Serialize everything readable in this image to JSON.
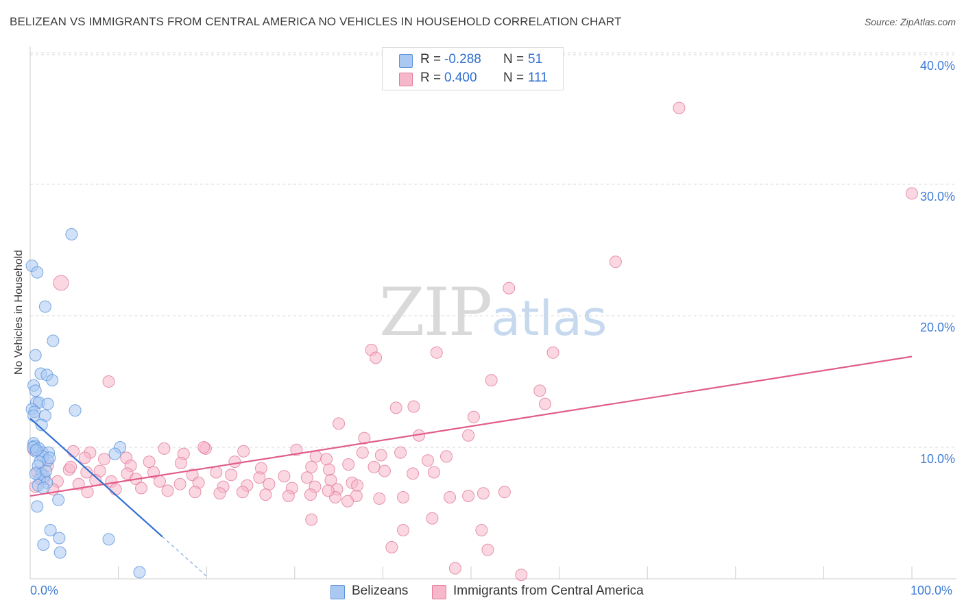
{
  "title": "BELIZEAN VS IMMIGRANTS FROM CENTRAL AMERICA NO VEHICLES IN HOUSEHOLD CORRELATION CHART",
  "source": "Source: ZipAtlas.com",
  "watermark": {
    "zip": "ZIP",
    "atlas": "atlas"
  },
  "legend": {
    "rows": [
      {
        "r_label": "R =",
        "r_value": "-0.288",
        "n_label": "N =",
        "n_value": "51",
        "color": "#a9c8f2"
      },
      {
        "r_label": "R =",
        "r_value": "0.400",
        "n_label": "N =",
        "n_value": "111",
        "color": "#f7b7ca"
      }
    ]
  },
  "bottom_legend": [
    {
      "label": "Belizeans",
      "color": "#a9c8f2"
    },
    {
      "label": "Immigrants from Central America",
      "color": "#f7b7ca"
    }
  ],
  "colors": {
    "blue_fill": "#a9c8f2",
    "blue_stroke": "#5b93dc",
    "blue_line": "#2f6fd0",
    "pink_fill": "#f7b7ca",
    "pink_stroke": "#e07a9a",
    "pink_line": "#e05c8a",
    "grid": "#d9d9d9",
    "tick_text": "#3f7dd6"
  },
  "chart_data": {
    "type": "scatter",
    "title": "BELIZEAN VS IMMIGRANTS FROM CENTRAL AMERICA NO VEHICLES IN HOUSEHOLD CORRELATION CHART",
    "xlabel": "",
    "ylabel": "No Vehicles in Household",
    "xlim": [
      0,
      100
    ],
    "ylim": [
      0,
      40
    ],
    "x_tick_labels": [
      "0.0%",
      "100.0%"
    ],
    "y_ticks": [
      10,
      20,
      30,
      40
    ],
    "y_tick_labels": [
      "10.0%",
      "20.0%",
      "30.0%",
      "40.0%"
    ],
    "grid": true,
    "legend_position": "top-center",
    "series": [
      {
        "name": "Belizeans",
        "r": -0.288,
        "n": 51,
        "trend": {
          "x0": 0.0,
          "y0": 12.2,
          "x1": 15.0,
          "y1": 3.2,
          "dashed_to_x": 20.0,
          "dashed_to_y": 0.2
        },
        "points": [
          [
            0.2,
            23.8
          ],
          [
            0.8,
            23.3
          ],
          [
            4.7,
            26.2
          ],
          [
            1.7,
            20.7
          ],
          [
            2.6,
            18.1
          ],
          [
            0.6,
            17.0
          ],
          [
            1.2,
            15.6
          ],
          [
            1.9,
            15.5
          ],
          [
            2.5,
            15.1
          ],
          [
            0.4,
            14.7
          ],
          [
            0.6,
            14.3
          ],
          [
            0.7,
            13.4
          ],
          [
            1.0,
            13.4
          ],
          [
            2.0,
            13.3
          ],
          [
            0.2,
            12.9
          ],
          [
            0.5,
            12.7
          ],
          [
            0.4,
            12.4
          ],
          [
            1.7,
            12.4
          ],
          [
            5.1,
            12.8
          ],
          [
            1.3,
            11.7
          ],
          [
            0.4,
            10.3
          ],
          [
            0.5,
            10.1
          ],
          [
            1.0,
            9.9
          ],
          [
            1.4,
            9.6
          ],
          [
            2.1,
            9.6
          ],
          [
            0.6,
            9.7
          ],
          [
            1.4,
            9.3
          ],
          [
            2.0,
            9.0
          ],
          [
            1.1,
            8.9
          ],
          [
            0.9,
            8.6
          ],
          [
            1.3,
            8.0
          ],
          [
            1.6,
            7.8
          ],
          [
            1.1,
            7.6
          ],
          [
            1.9,
            7.3
          ],
          [
            0.9,
            7.1
          ],
          [
            1.5,
            6.9
          ],
          [
            3.2,
            6.0
          ],
          [
            0.8,
            5.5
          ],
          [
            10.2,
            10.0
          ],
          [
            9.6,
            9.5
          ],
          [
            2.3,
            3.7
          ],
          [
            3.3,
            3.1
          ],
          [
            8.9,
            3.0
          ],
          [
            1.5,
            2.6
          ],
          [
            3.4,
            2.0
          ],
          [
            12.4,
            0.5
          ],
          [
            0.3,
            10.0
          ],
          [
            0.7,
            9.8
          ],
          [
            1.8,
            8.2
          ],
          [
            0.6,
            8.0
          ],
          [
            2.2,
            9.2
          ]
        ]
      },
      {
        "name": "Immigrants from Central America",
        "r": 0.4,
        "n": 111,
        "trend": {
          "x0": 0.0,
          "y0": 6.3,
          "x1": 100.0,
          "y1": 16.9
        },
        "points": [
          [
            73.6,
            35.8
          ],
          [
            100.0,
            29.3
          ],
          [
            66.4,
            24.1
          ],
          [
            3.5,
            22.5
          ],
          [
            54.3,
            22.1
          ],
          [
            38.7,
            17.4
          ],
          [
            39.2,
            16.8
          ],
          [
            46.1,
            17.2
          ],
          [
            59.3,
            17.2
          ],
          [
            8.9,
            15.0
          ],
          [
            52.3,
            15.1
          ],
          [
            57.8,
            14.3
          ],
          [
            58.4,
            13.3
          ],
          [
            41.5,
            13.0
          ],
          [
            43.5,
            13.1
          ],
          [
            50.3,
            12.3
          ],
          [
            35.0,
            11.8
          ],
          [
            44.1,
            10.9
          ],
          [
            49.7,
            10.9
          ],
          [
            37.9,
            10.7
          ],
          [
            15.2,
            9.9
          ],
          [
            19.9,
            9.9
          ],
          [
            4.9,
            9.7
          ],
          [
            6.8,
            9.6
          ],
          [
            17.4,
            9.5
          ],
          [
            24.2,
            9.7
          ],
          [
            30.2,
            9.8
          ],
          [
            32.4,
            9.3
          ],
          [
            33.6,
            9.1
          ],
          [
            37.7,
            9.6
          ],
          [
            39.8,
            9.4
          ],
          [
            42.0,
            9.6
          ],
          [
            45.1,
            9.0
          ],
          [
            47.2,
            9.3
          ],
          [
            8.4,
            9.1
          ],
          [
            10.9,
            9.2
          ],
          [
            13.5,
            8.9
          ],
          [
            11.4,
            8.6
          ],
          [
            17.1,
            8.8
          ],
          [
            23.2,
            8.9
          ],
          [
            26.2,
            8.4
          ],
          [
            31.9,
            8.5
          ],
          [
            33.9,
            8.3
          ],
          [
            36.1,
            8.7
          ],
          [
            39.0,
            8.5
          ],
          [
            40.2,
            8.2
          ],
          [
            43.4,
            8.0
          ],
          [
            45.8,
            8.1
          ],
          [
            4.4,
            8.3
          ],
          [
            6.4,
            8.1
          ],
          [
            7.9,
            8.2
          ],
          [
            11.0,
            8.0
          ],
          [
            14.0,
            8.1
          ],
          [
            18.4,
            7.9
          ],
          [
            21.1,
            8.1
          ],
          [
            22.8,
            7.9
          ],
          [
            26.0,
            7.7
          ],
          [
            28.8,
            7.8
          ],
          [
            31.4,
            7.7
          ],
          [
            34.1,
            7.5
          ],
          [
            36.5,
            7.3
          ],
          [
            0.8,
            8.1
          ],
          [
            1.6,
            7.6
          ],
          [
            3.1,
            7.4
          ],
          [
            5.5,
            7.2
          ],
          [
            7.4,
            7.5
          ],
          [
            9.2,
            7.4
          ],
          [
            12.0,
            7.6
          ],
          [
            14.7,
            7.4
          ],
          [
            17.0,
            7.2
          ],
          [
            19.1,
            7.3
          ],
          [
            21.9,
            7.0
          ],
          [
            24.6,
            7.1
          ],
          [
            27.1,
            7.2
          ],
          [
            29.7,
            6.9
          ],
          [
            32.3,
            7.0
          ],
          [
            34.8,
            6.8
          ],
          [
            37.1,
            7.1
          ],
          [
            0.6,
            7.0
          ],
          [
            2.6,
            6.8
          ],
          [
            6.5,
            6.6
          ],
          [
            9.7,
            6.8
          ],
          [
            12.6,
            6.9
          ],
          [
            15.6,
            6.7
          ],
          [
            18.7,
            6.6
          ],
          [
            21.5,
            6.5
          ],
          [
            24.1,
            6.6
          ],
          [
            26.7,
            6.4
          ],
          [
            29.3,
            6.3
          ],
          [
            31.8,
            6.4
          ],
          [
            34.6,
            6.2
          ],
          [
            37.0,
            6.3
          ],
          [
            39.6,
            6.1
          ],
          [
            42.3,
            6.2
          ],
          [
            47.6,
            6.2
          ],
          [
            49.7,
            6.3
          ],
          [
            2.0,
            8.6
          ],
          [
            4.6,
            8.5
          ],
          [
            6.2,
            9.2
          ],
          [
            19.7,
            10.0
          ],
          [
            53.8,
            6.6
          ],
          [
            45.6,
            4.6
          ],
          [
            36.0,
            5.9
          ],
          [
            33.8,
            6.7
          ],
          [
            51.4,
            6.5
          ],
          [
            31.9,
            4.5
          ],
          [
            42.3,
            3.7
          ],
          [
            51.2,
            3.7
          ],
          [
            41.0,
            2.4
          ],
          [
            51.9,
            2.2
          ],
          [
            48.2,
            0.8
          ],
          [
            55.7,
            0.3
          ],
          [
            0.4,
            9.8
          ]
        ]
      }
    ]
  }
}
